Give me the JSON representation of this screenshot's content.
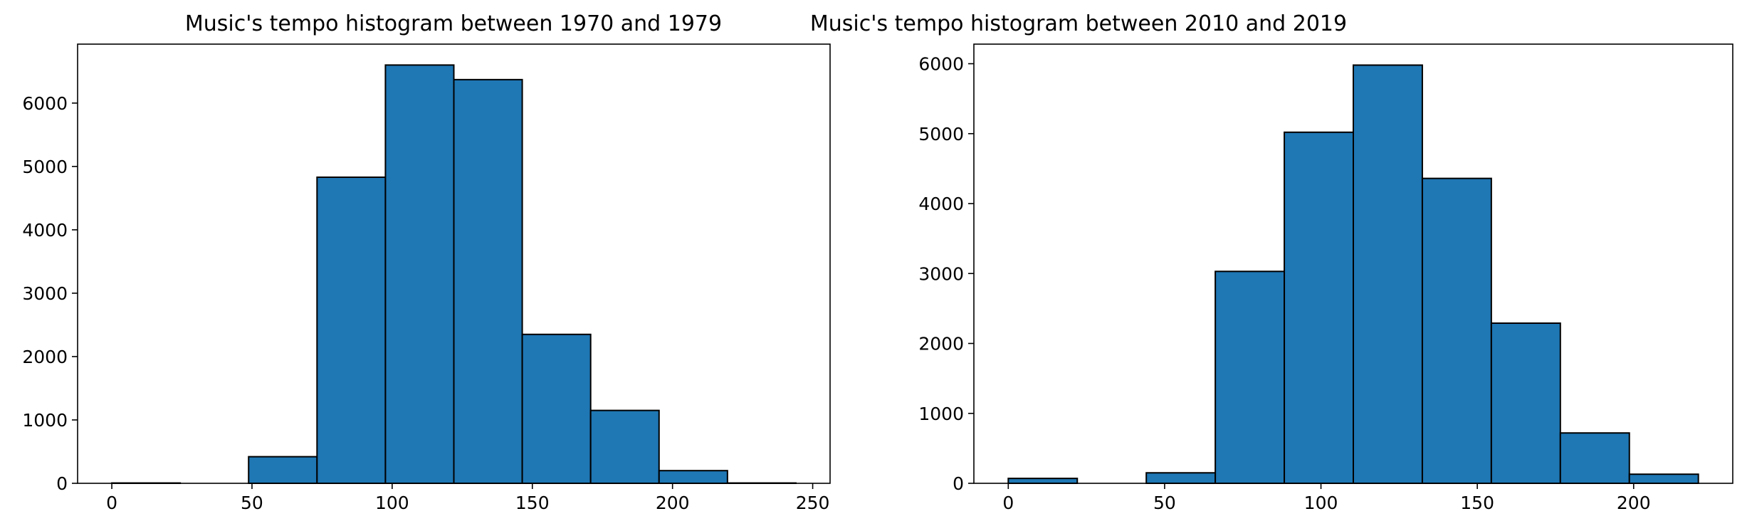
{
  "colors": {
    "bar_fill": "#1f77b4",
    "bar_edge": "#000000",
    "axes": "#000000",
    "background": "#ffffff"
  },
  "chart_data": [
    {
      "type": "bar",
      "title": "Music's tempo histogram between 1970 and 1979",
      "xlabel": "",
      "ylabel": "",
      "bin_edges": [
        0,
        24.4,
        48.8,
        73.2,
        97.6,
        122,
        146.4,
        170.8,
        195.2,
        219.6,
        244
      ],
      "values": [
        5,
        0,
        420,
        4830,
        6600,
        6370,
        2350,
        1150,
        200,
        5
      ],
      "xlim": [
        -12.2,
        256.2
      ],
      "ylim": [
        0,
        6930
      ],
      "xticks": [
        0,
        50,
        100,
        150,
        200,
        250
      ],
      "xtick_labels": [
        "0",
        "50",
        "100",
        "150",
        "200",
        "250"
      ],
      "yticks": [
        0,
        1000,
        2000,
        3000,
        4000,
        5000,
        6000
      ],
      "ytick_labels": [
        "0",
        "1000",
        "2000",
        "3000",
        "4000",
        "5000",
        "6000"
      ],
      "grid": false,
      "legend": "none"
    },
    {
      "type": "bar",
      "title": "Music's tempo histogram between 2010 and 2019",
      "xlabel": "",
      "ylabel": "",
      "bin_edges": [
        0,
        22.07,
        44.14,
        66.21,
        88.28,
        110.35,
        132.42,
        154.49,
        176.56,
        198.63,
        220.7
      ],
      "values": [
        70,
        0,
        150,
        3030,
        5020,
        5980,
        4360,
        2290,
        720,
        130
      ],
      "xlim": [
        -11.0,
        231.7
      ],
      "ylim": [
        0,
        6280
      ],
      "xticks": [
        0,
        50,
        100,
        150,
        200
      ],
      "xtick_labels": [
        "0",
        "50",
        "100",
        "150",
        "200"
      ],
      "yticks": [
        0,
        1000,
        2000,
        3000,
        4000,
        5000,
        6000
      ],
      "ytick_labels": [
        "0",
        "1000",
        "2000",
        "3000",
        "4000",
        "5000",
        "6000"
      ],
      "grid": false,
      "legend": "none"
    }
  ]
}
